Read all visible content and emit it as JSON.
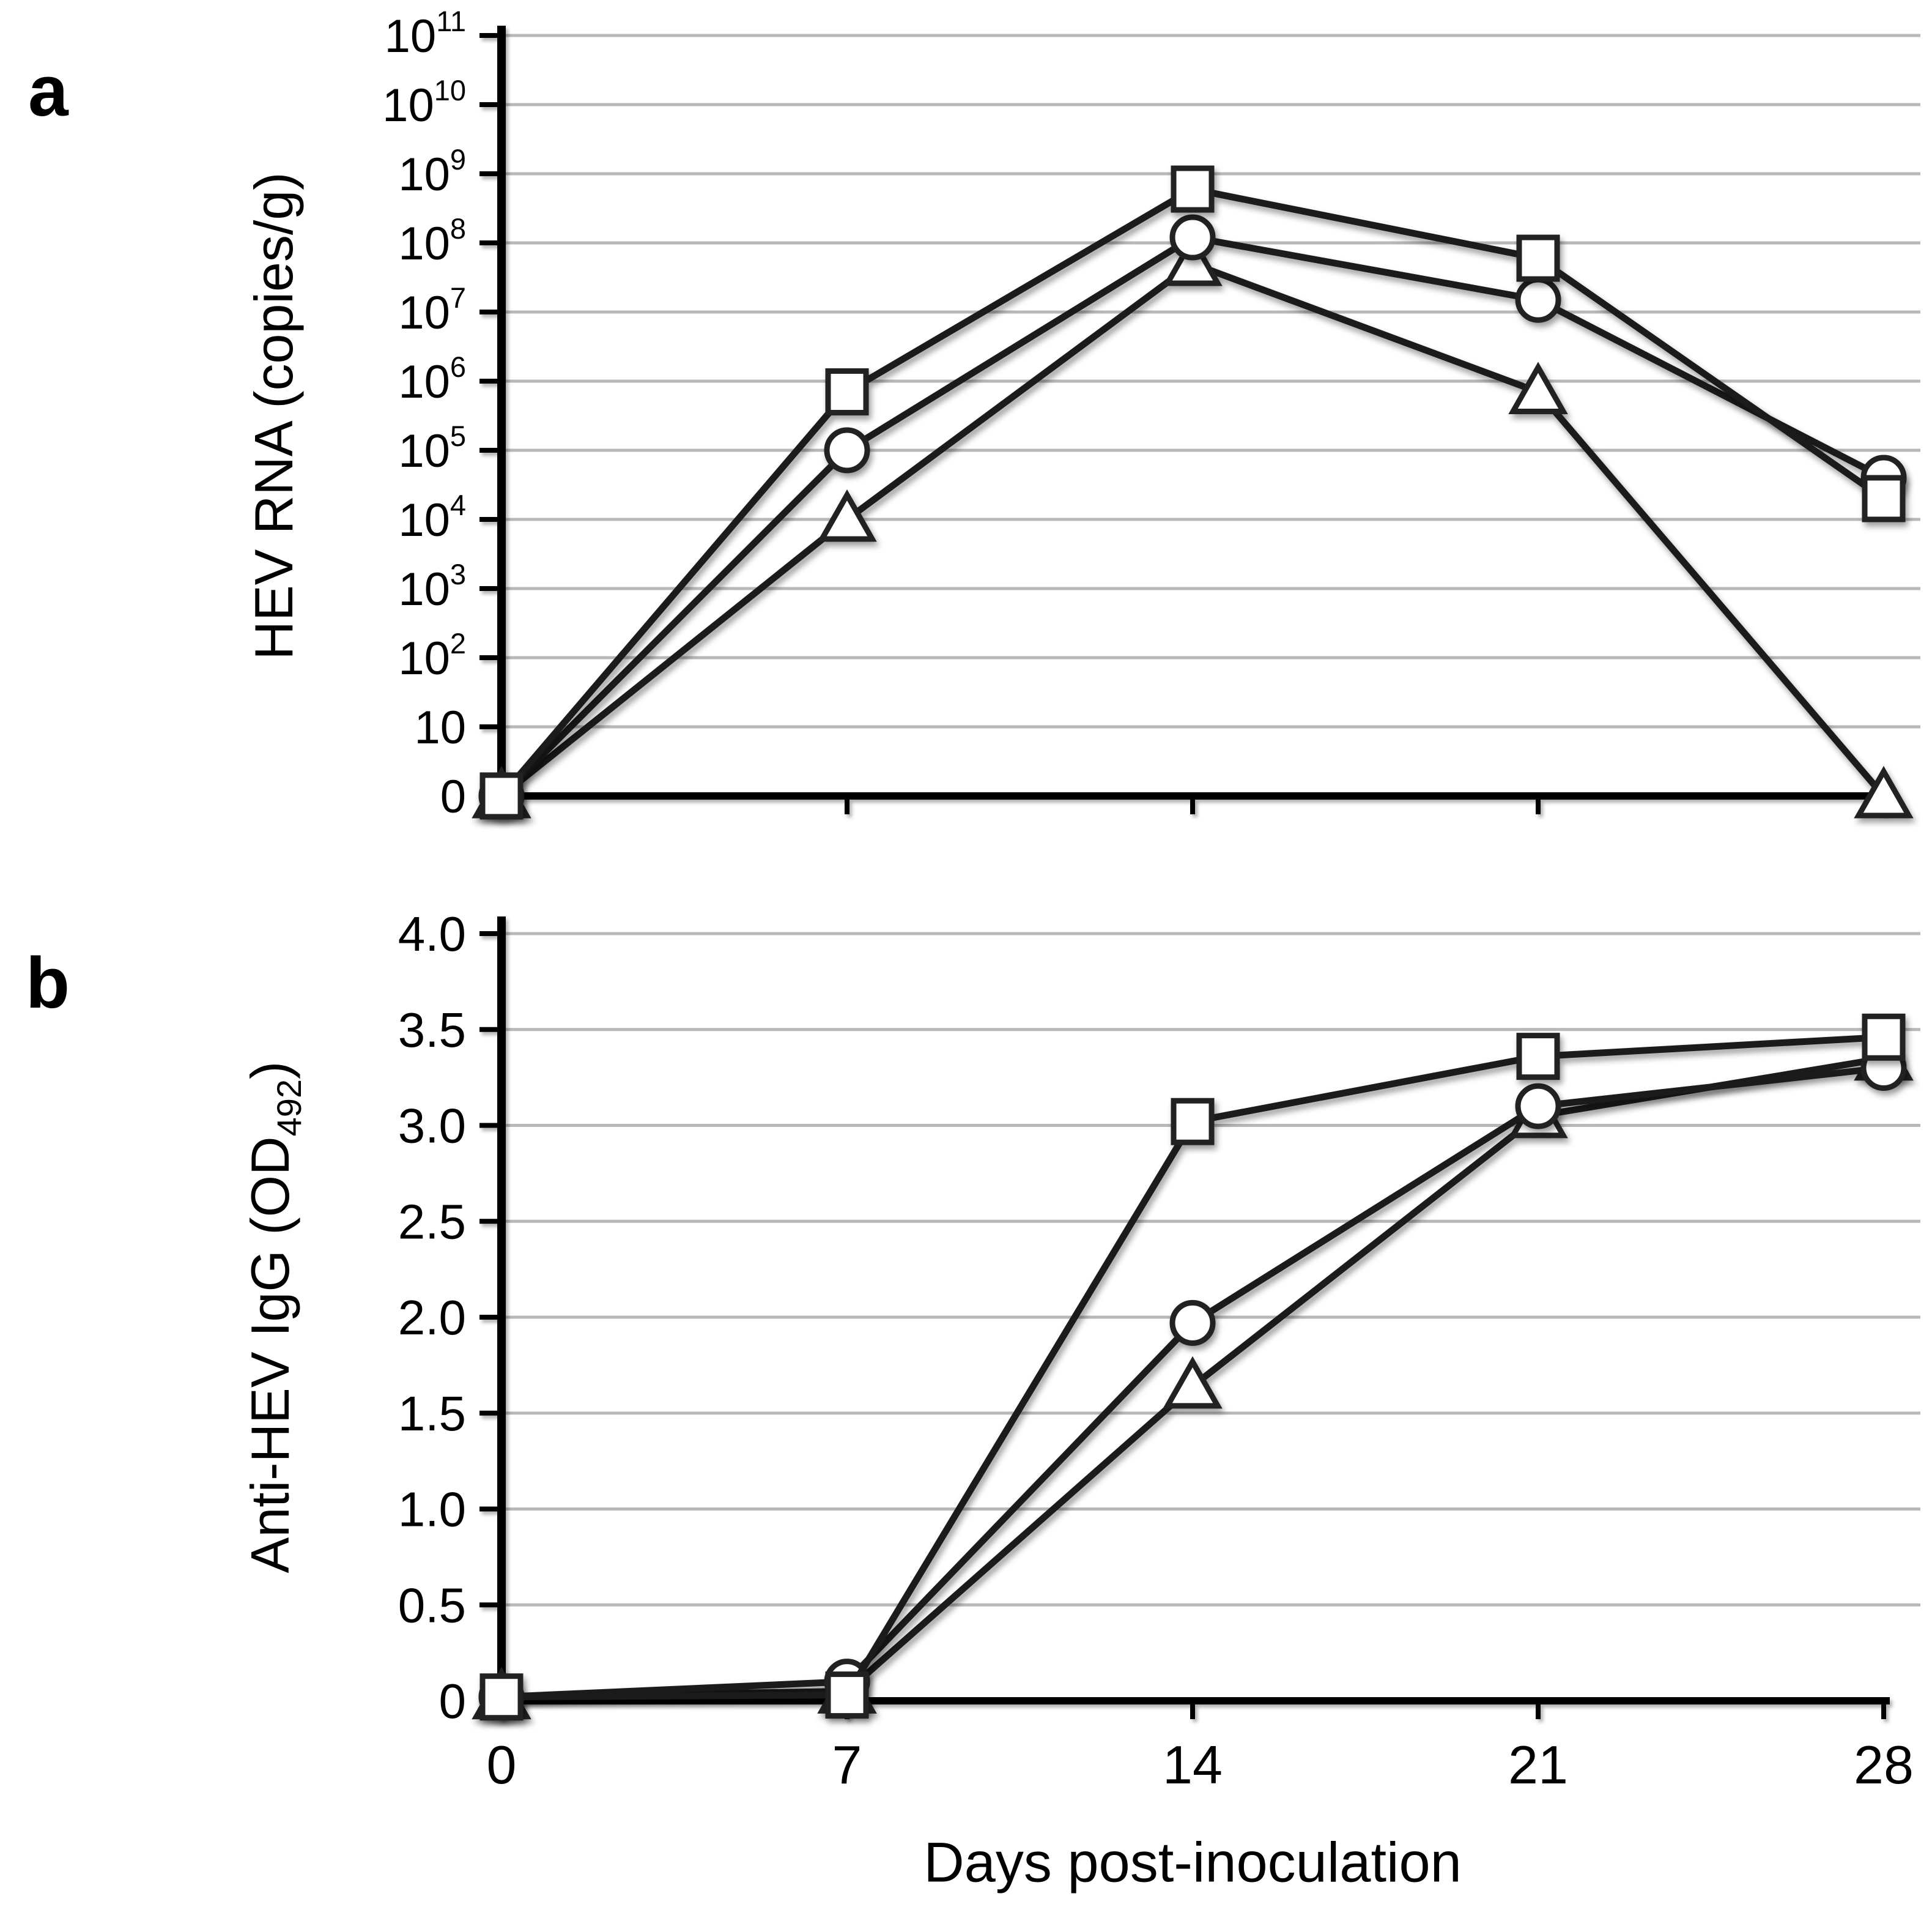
{
  "figure": {
    "panel_a_letter": "a",
    "panel_b_letter": "b",
    "x_axis_title": "Days post-inoculation",
    "background": "#ffffff"
  },
  "colors": {
    "line": "#1b1b1b",
    "marker_stroke": "#222222",
    "marker_fill": "#ffffff",
    "grid": "#b8b8b8",
    "axis": "#000000"
  },
  "chart_data": [
    {
      "id": "a",
      "type": "line",
      "panel_letter": "a",
      "ylabel": "HEV RNA (copies/g)",
      "xlabel": "Days post-inoculation",
      "yscale": "log-decades-with-zero-baseline",
      "grid": true,
      "legend": "none",
      "x": [
        0,
        7,
        14,
        21,
        28
      ],
      "ytick_exponents": [
        11,
        10,
        9,
        8,
        7,
        6,
        5,
        4,
        3,
        2,
        1,
        0
      ],
      "yticks_display": [
        {
          "main": "10",
          "sup": "11"
        },
        {
          "main": "10",
          "sup": "10"
        },
        {
          "main": "10",
          "sup": "9"
        },
        {
          "main": "10",
          "sup": "8"
        },
        {
          "main": "10",
          "sup": "7"
        },
        {
          "main": "10",
          "sup": "6"
        },
        {
          "main": "10",
          "sup": "5"
        },
        {
          "main": "10",
          "sup": "4"
        },
        {
          "main": "10",
          "sup": "3"
        },
        {
          "main": "10",
          "sup": "2"
        },
        {
          "main": "10",
          "sup": ""
        },
        {
          "main": "0",
          "sup": ""
        }
      ],
      "series": [
        {
          "name": "square-series",
          "marker": "square",
          "values": [
            0,
            700000,
            600000000,
            60000000,
            20000
          ]
        },
        {
          "name": "circle-series",
          "marker": "circle",
          "values": [
            0,
            100000,
            120000000,
            15000000,
            40000
          ]
        },
        {
          "name": "triangle-series",
          "marker": "triangle",
          "values": [
            0,
            10000,
            50000000,
            700000,
            0
          ]
        }
      ]
    },
    {
      "id": "b",
      "type": "line",
      "panel_letter": "b",
      "ylabel_parts": {
        "pre": "Anti-HEV IgG (OD",
        "sub": "492",
        "post": ")"
      },
      "xlabel": "Days post-inoculation",
      "ylim": [
        0,
        4.0
      ],
      "grid": true,
      "legend": "none",
      "x": [
        0,
        7,
        14,
        21,
        28
      ],
      "xticks": [
        "0",
        "7",
        "14",
        "21",
        "28"
      ],
      "yticks": [
        4.0,
        3.5,
        3.0,
        2.5,
        2.0,
        1.5,
        1.0,
        0.5,
        0
      ],
      "yticks_display": [
        "4.0",
        "3.5",
        "3.0",
        "2.5",
        "2.0",
        "1.5",
        "1.0",
        "0.5",
        "0"
      ],
      "series": [
        {
          "name": "square-series",
          "marker": "square",
          "values": [
            0.02,
            0.03,
            3.02,
            3.36,
            3.46
          ]
        },
        {
          "name": "circle-series",
          "marker": "circle",
          "values": [
            0.02,
            0.1,
            1.97,
            3.1,
            3.3
          ]
        },
        {
          "name": "triangle-series",
          "marker": "triangle",
          "values": [
            0.02,
            0.05,
            1.64,
            3.05,
            3.35
          ]
        }
      ]
    }
  ]
}
